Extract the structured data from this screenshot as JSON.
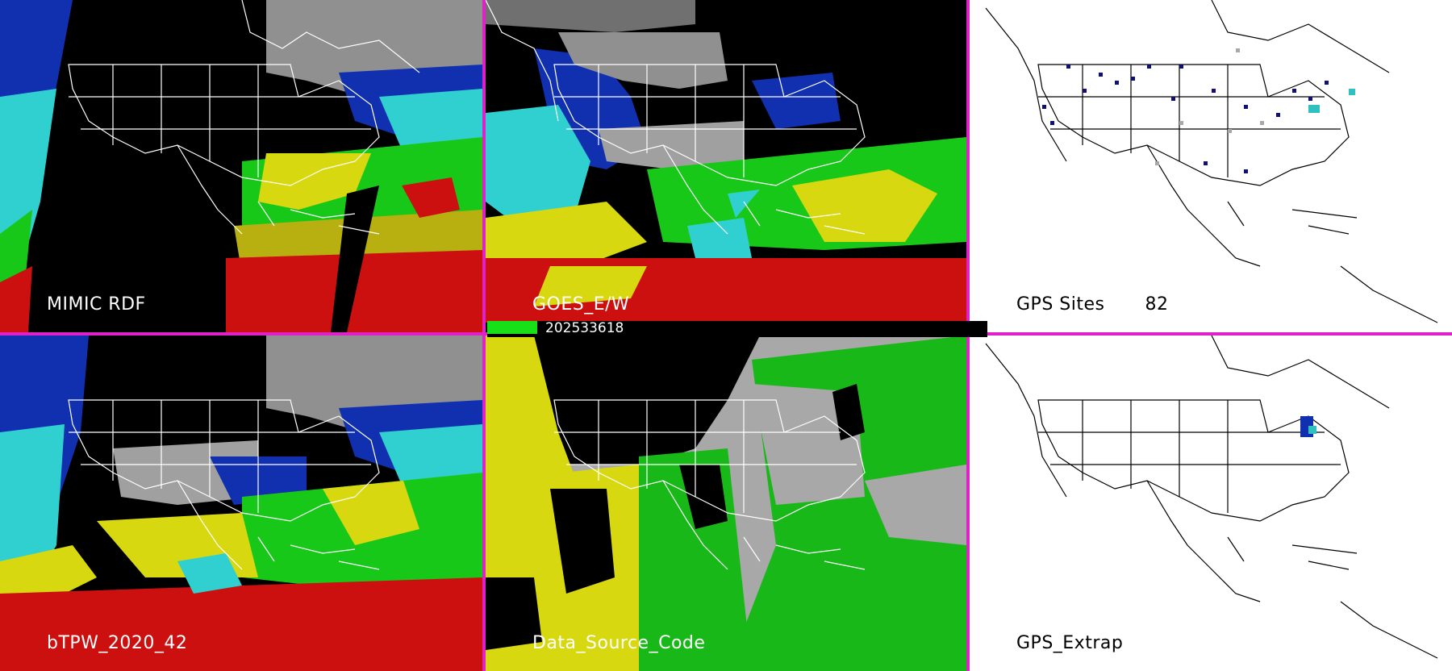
{
  "panels": [
    {
      "id": "mimic-rdf",
      "label": "MIMIC RDF",
      "theme": "dark"
    },
    {
      "id": "goes-ew",
      "label": "GOES_E/W",
      "theme": "dark"
    },
    {
      "id": "gps-sites",
      "label": "GPS Sites",
      "count": "82",
      "theme": "light"
    },
    {
      "id": "btpw",
      "label": "bTPW_2020_42",
      "theme": "dark"
    },
    {
      "id": "data-source-code",
      "label": "Data_Source_Code",
      "theme": "dark"
    },
    {
      "id": "gps-extrap",
      "label": "GPS_Extrap",
      "theme": "light"
    }
  ],
  "timestamp": "202533618",
  "colors": {
    "divider": "#e020c8",
    "red": "#cc1010",
    "yellow": "#d8d810",
    "green": "#18d818",
    "cyan": "#30e0e0",
    "blue": "#1030b0",
    "gray": "#a8a8a8",
    "black": "#000000",
    "white": "#ffffff"
  }
}
